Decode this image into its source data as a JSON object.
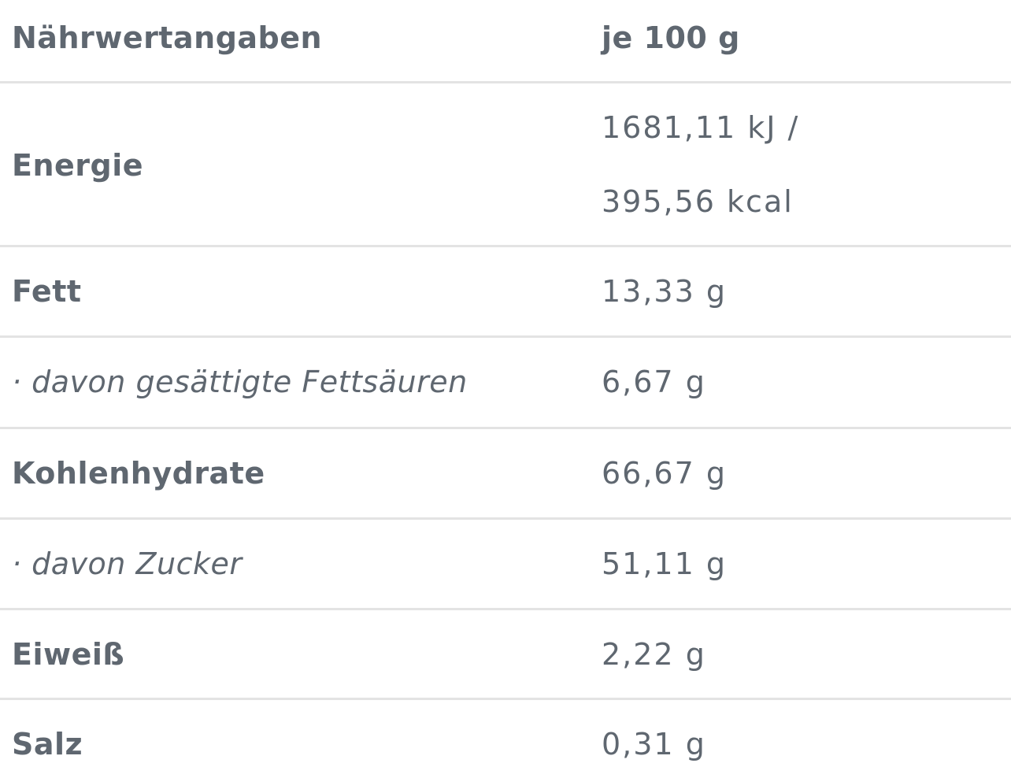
{
  "header": {
    "label": "Nährwertangaben",
    "value": "je 100 g"
  },
  "energy": {
    "label": "Energie",
    "value_kj": "1681,11 kJ /",
    "value_kcal": "395,56 kcal"
  },
  "rows": [
    {
      "label": "Fett",
      "value": "13,33 g"
    },
    {
      "label": "· davon gesättigte Fettsäuren",
      "value": "6,67 g"
    },
    {
      "label": "Kohlenhydrate",
      "value": "66,67 g"
    },
    {
      "label": "· davon Zucker",
      "value": "51,11 g"
    },
    {
      "label": "Eiweiß",
      "value": "2,22 g"
    },
    {
      "label": "Salz",
      "value": "0,31 g"
    }
  ]
}
